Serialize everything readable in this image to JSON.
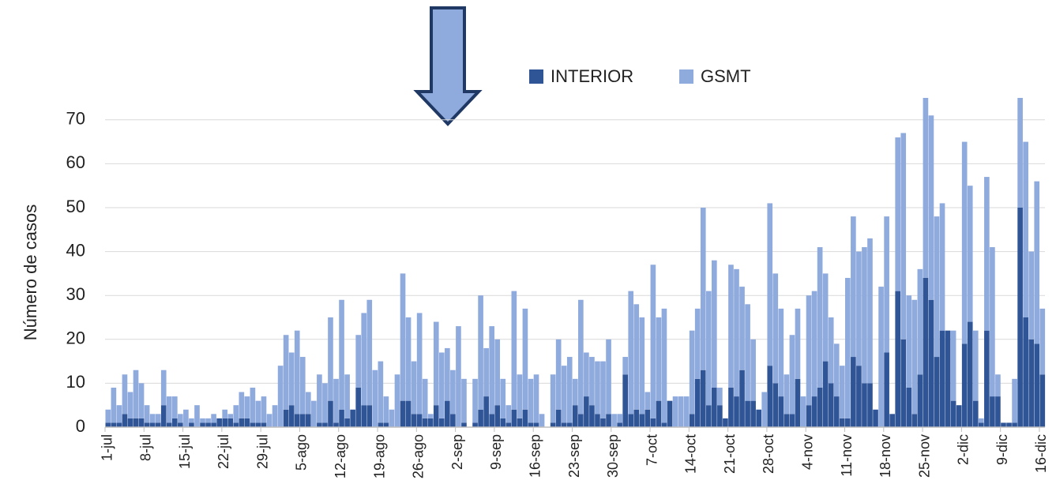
{
  "chart_data": {
    "type": "bar",
    "stacked": true,
    "y_label": "Número de casos",
    "categories": [
      "1-jul",
      null,
      null,
      null,
      null,
      null,
      null,
      "8-jul",
      null,
      null,
      null,
      null,
      null,
      null,
      "15-jul",
      null,
      null,
      null,
      null,
      null,
      null,
      "22-jul",
      null,
      null,
      null,
      null,
      null,
      null,
      "29-jul",
      null,
      null,
      null,
      null,
      null,
      null,
      "5-ago",
      null,
      null,
      null,
      null,
      null,
      null,
      "12-ago",
      null,
      null,
      null,
      null,
      null,
      null,
      "19-ago",
      null,
      null,
      null,
      null,
      null,
      null,
      "26-ago",
      null,
      null,
      null,
      null,
      null,
      null,
      "2-sep",
      null,
      null,
      null,
      null,
      null,
      null,
      "9-sep",
      null,
      null,
      null,
      null,
      null,
      null,
      "16-sep",
      null,
      null,
      null,
      null,
      null,
      null,
      "23-sep",
      null,
      null,
      null,
      null,
      null,
      null,
      "30-sep",
      null,
      null,
      null,
      null,
      null,
      null,
      "7-oct",
      null,
      null,
      null,
      null,
      null,
      null,
      "14-oct",
      null,
      null,
      null,
      null,
      null,
      null,
      "21-oct",
      null,
      null,
      null,
      null,
      null,
      null,
      "28-oct",
      null,
      null,
      null,
      null,
      null,
      null,
      "4-nov",
      null,
      null,
      null,
      null,
      null,
      null,
      "11-nov",
      null,
      null,
      null,
      null,
      null,
      null,
      "18-nov",
      null,
      null,
      null,
      null,
      null,
      null,
      "25-nov",
      null,
      null,
      null,
      null,
      null,
      null,
      "2-dic",
      null,
      null,
      null,
      null,
      null,
      null,
      "9-dic",
      null,
      null,
      null,
      null,
      null,
      null,
      "16-dic"
    ],
    "series": [
      {
        "name": "INTERIOR",
        "color": "#2f5597",
        "values": [
          1,
          1,
          1,
          3,
          2,
          2,
          2,
          1,
          1,
          1,
          5,
          1,
          2,
          1,
          0,
          1,
          0,
          1,
          1,
          1,
          2,
          2,
          2,
          1,
          2,
          2,
          1,
          1,
          1,
          0,
          0,
          0,
          4,
          5,
          3,
          3,
          3,
          0,
          1,
          1,
          6,
          1,
          4,
          2,
          4,
          9,
          5,
          5,
          0,
          1,
          1,
          0,
          0,
          6,
          6,
          3,
          3,
          2,
          2,
          5,
          2,
          6,
          3,
          0,
          1,
          0,
          1,
          4,
          7,
          3,
          5,
          2,
          1,
          4,
          2,
          4,
          1,
          1,
          0,
          0,
          1,
          4,
          1,
          1,
          5,
          3,
          7,
          5,
          3,
          2,
          3,
          0,
          1,
          12,
          3,
          4,
          3,
          4,
          2,
          6,
          1,
          6,
          0,
          0,
          0,
          3,
          11,
          13,
          5,
          9,
          5,
          2,
          9,
          7,
          13,
          6,
          6,
          4,
          0,
          14,
          10,
          7,
          3,
          3,
          11,
          0,
          5,
          7,
          9,
          15,
          10,
          7,
          2,
          2,
          16,
          14,
          10,
          10,
          4,
          0,
          17,
          3,
          31,
          20,
          9,
          3,
          12,
          34,
          29,
          16,
          22,
          22,
          6,
          5,
          19,
          24,
          6,
          1,
          22,
          7,
          7,
          1,
          1,
          1,
          50,
          25,
          20,
          19,
          12
        ]
      },
      {
        "name": "GSMT",
        "color": "#8faadc",
        "values": [
          3,
          8,
          4,
          9,
          6,
          11,
          8,
          4,
          2,
          2,
          8,
          6,
          5,
          2,
          4,
          1,
          5,
          1,
          1,
          2,
          0,
          2,
          1,
          4,
          6,
          5,
          8,
          5,
          6,
          3,
          5,
          14,
          17,
          12,
          19,
          13,
          5,
          6,
          11,
          9,
          19,
          10,
          25,
          10,
          0,
          12,
          21,
          24,
          13,
          14,
          6,
          4,
          12,
          29,
          19,
          12,
          23,
          9,
          1,
          19,
          15,
          12,
          10,
          23,
          10,
          0,
          10,
          26,
          11,
          20,
          15,
          9,
          4,
          27,
          10,
          23,
          10,
          11,
          3,
          0,
          11,
          16,
          13,
          15,
          6,
          26,
          10,
          11,
          12,
          13,
          17,
          3,
          2,
          4,
          28,
          24,
          22,
          4,
          35,
          19,
          26,
          0,
          7,
          7,
          7,
          19,
          16,
          37,
          26,
          29,
          4,
          0,
          28,
          29,
          19,
          22,
          14,
          0,
          8,
          37,
          25,
          20,
          9,
          18,
          16,
          7,
          25,
          24,
          32,
          20,
          15,
          12,
          12,
          32,
          32,
          26,
          31,
          33,
          0,
          32,
          31,
          0,
          35,
          47,
          21,
          26,
          24,
          41,
          42,
          32,
          29,
          0,
          16,
          0,
          46,
          31,
          16,
          1,
          35,
          34,
          5,
          0,
          0,
          10,
          25,
          40,
          20,
          37,
          15
        ]
      }
    ],
    "ylim": [
      0,
      75
    ],
    "yticks": [
      0,
      10,
      20,
      30,
      40,
      50,
      60,
      70
    ],
    "grid": true,
    "legend": "top"
  }
}
